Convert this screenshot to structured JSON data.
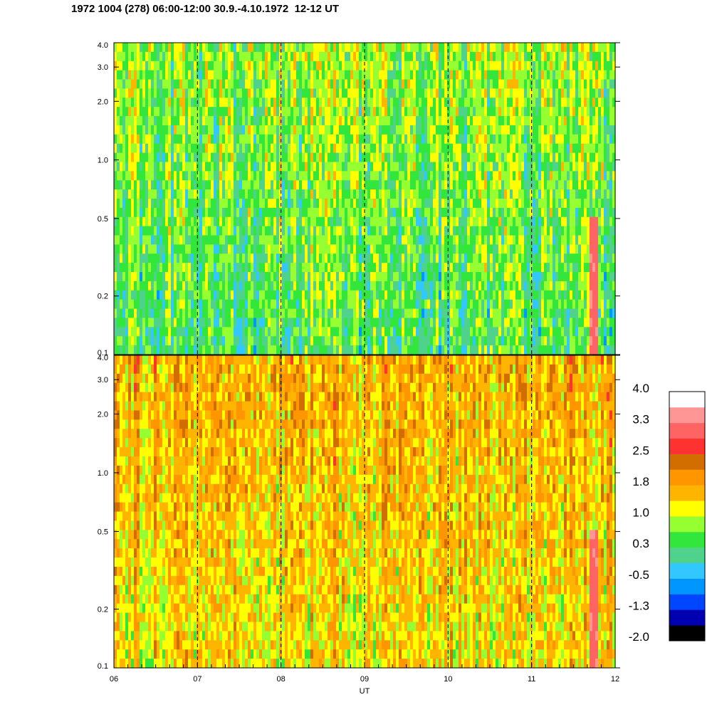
{
  "title": "1972 1004 (278) 06:00-12:00 30.9.-4.10.1972  12-12 UT",
  "chart_data": {
    "type": "heatmap",
    "x": {
      "label": "UT",
      "ticks": [
        "06",
        "07",
        "08",
        "09",
        "10",
        "11",
        "12"
      ],
      "range": [
        6,
        12
      ],
      "gridlines_dashed_at": [
        7,
        8,
        9,
        10,
        11
      ]
    },
    "panels": [
      {
        "name": "top",
        "y_scale": "log",
        "y_range": [
          0.1,
          4.0
        ],
        "y_ticks": [
          "4.0",
          "3.0",
          "2.0",
          "1.0",
          "0.5",
          "0.2",
          "0.1"
        ],
        "dominant_level_low_freq": 0.3,
        "dominant_level_high_freq": 0.8,
        "event_hour": 11.74
      },
      {
        "name": "bottom",
        "y_scale": "log",
        "y_range": [
          0.1,
          4.0
        ],
        "y_ticks": [
          "4.0",
          "3.0",
          "2.0",
          "1.0",
          "0.5",
          "0.2",
          "0.1"
        ],
        "dominant_level_low_freq": 1.3,
        "dominant_level_high_freq": 1.7,
        "event_hour": 11.74
      }
    ],
    "colorbar": {
      "labels": [
        "4.0",
        "3.3",
        "2.5",
        "1.8",
        "1.0",
        "0.3",
        "-0.5",
        "-1.3",
        "-2.0"
      ],
      "range": [
        -2.0,
        4.0
      ],
      "colors": [
        "#000000",
        "#0000b0",
        "#0046ff",
        "#0096ff",
        "#32c8ff",
        "#4ed28c",
        "#32e63c",
        "#96ff32",
        "#ffff00",
        "#ffb400",
        "#ff9600",
        "#d26e00",
        "#ff3232",
        "#ff6464",
        "#ff9696",
        "#ffffff"
      ]
    }
  }
}
